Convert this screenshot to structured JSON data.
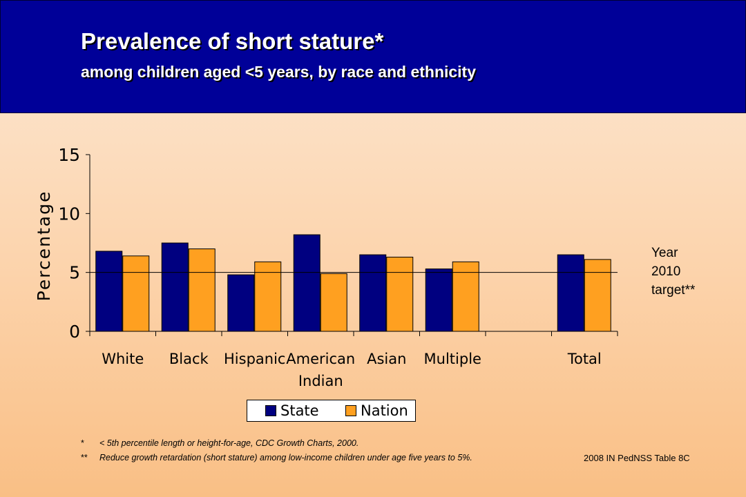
{
  "header": {
    "title": "Prevalence of short stature*",
    "subtitle": "among children aged <5 years, by race and ethnicity"
  },
  "colors": {
    "header_bg": "#000098",
    "state": "#000080",
    "nation": "#ffa020",
    "target_line": "#000000"
  },
  "chart_data": {
    "type": "bar",
    "ylabel": "Percentage",
    "ylim": [
      0,
      15
    ],
    "yticks": [
      "0",
      "5",
      "10",
      "15"
    ],
    "category_labels": [
      [
        "White"
      ],
      [
        "Black"
      ],
      [
        "Hispanic"
      ],
      [
        "American",
        "Indian"
      ],
      [
        "Asian"
      ],
      [
        "Multiple"
      ],
      [
        ""
      ],
      [
        "Total"
      ]
    ],
    "series": [
      {
        "name": "State",
        "values": [
          6.8,
          7.5,
          4.8,
          8.2,
          6.5,
          5.3,
          null,
          6.5
        ]
      },
      {
        "name": "Nation",
        "values": [
          6.4,
          7.0,
          5.9,
          4.9,
          6.3,
          5.9,
          null,
          6.1
        ]
      }
    ],
    "target": {
      "value": 5,
      "label": [
        "Year",
        "2010",
        "target**"
      ]
    },
    "legend_position": "bottom",
    "grid": false
  },
  "footnotes": [
    {
      "mark": "*",
      "text": "< 5th percentile length or height-for-age, CDC Growth Charts, 2000."
    },
    {
      "mark": "**",
      "text": "Reduce growth retardation (short stature) among low-income children under age five years to 5%."
    }
  ],
  "source": "2008 IN PedNSS Table 8C"
}
